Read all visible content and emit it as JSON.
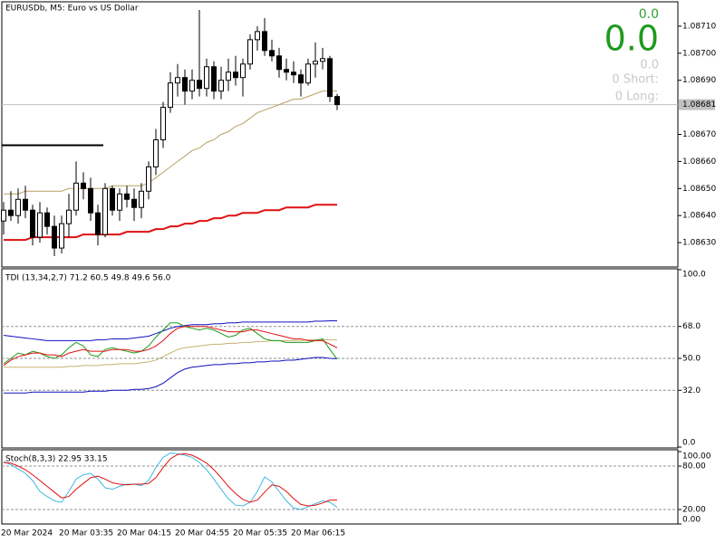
{
  "chart_data": [
    {
      "type": "candlestick",
      "title": "EURUSDb, M5:  Euro vs US Dollar",
      "categories": [
        "20 Mar 2024",
        null,
        null,
        null,
        null,
        null,
        null,
        null,
        "20 Mar 03:35",
        null,
        null,
        null,
        null,
        null,
        null,
        null,
        "20 Mar 04:15",
        null,
        null,
        null,
        null,
        null,
        null,
        null,
        "20 Mar 04:55",
        null,
        null,
        null,
        null,
        null,
        null,
        null,
        "20 Mar 05:35",
        null,
        null,
        null,
        null,
        null,
        null,
        null,
        "20 Mar 06:15",
        null,
        null,
        null,
        null,
        null,
        null
      ],
      "open": [
        1.08638,
        1.08642,
        1.0864,
        1.08646,
        1.08642,
        1.08632,
        1.08641,
        1.08636,
        1.08628,
        1.08637,
        1.08642,
        1.08652,
        1.0865,
        1.08641,
        1.08633,
        1.0865,
        1.08642,
        1.08648,
        1.08646,
        1.08643,
        1.08649,
        1.08658,
        1.08668,
        1.0868,
        1.08689,
        1.08691,
        1.08686,
        1.0869,
        1.08687,
        1.08695,
        1.08686,
        1.0869,
        1.08693,
        1.08691,
        1.08696,
        1.08705,
        1.08708,
        1.08701,
        1.08699,
        1.08694,
        1.08693,
        1.08692,
        1.08689,
        1.08696,
        1.08697,
        1.08698,
        1.08684
      ],
      "high": [
        1.08645,
        1.08649,
        1.0865,
        1.08651,
        1.08644,
        1.08645,
        1.08643,
        1.0864,
        1.0864,
        1.08648,
        1.0866,
        1.08656,
        1.08654,
        1.08644,
        1.08652,
        1.08651,
        1.0865,
        1.08651,
        1.0865,
        1.08652,
        1.0866,
        1.08672,
        1.08682,
        1.08693,
        1.08696,
        1.08694,
        1.08694,
        1.08716,
        1.08698,
        1.08697,
        1.08695,
        1.08698,
        1.08699,
        1.08698,
        1.08707,
        1.0871,
        1.08713,
        1.08705,
        1.08702,
        1.08698,
        1.08697,
        1.08694,
        1.08698,
        1.08704,
        1.08702,
        1.08699,
        1.08685
      ],
      "low": [
        1.08633,
        1.08638,
        1.08637,
        1.08639,
        1.08629,
        1.0863,
        1.08633,
        1.08625,
        1.08626,
        1.08632,
        1.0864,
        1.08646,
        1.08638,
        1.08629,
        1.08632,
        1.0864,
        1.08638,
        1.08643,
        1.08638,
        1.08639,
        1.08646,
        1.08655,
        1.08665,
        1.08678,
        1.08684,
        1.08681,
        1.08683,
        1.08684,
        1.08684,
        1.08683,
        1.08683,
        1.08686,
        1.08688,
        1.08684,
        1.08694,
        1.08701,
        1.08699,
        1.08697,
        1.08691,
        1.0869,
        1.08689,
        1.08684,
        1.08688,
        1.08691,
        1.08694,
        1.08682,
        1.08679
      ],
      "close": [
        1.08642,
        1.0864,
        1.08646,
        1.08642,
        1.08632,
        1.08641,
        1.08636,
        1.08628,
        1.08637,
        1.08642,
        1.08652,
        1.0865,
        1.08641,
        1.08633,
        1.0865,
        1.08642,
        1.08648,
        1.08646,
        1.08643,
        1.08649,
        1.08658,
        1.08668,
        1.0868,
        1.08689,
        1.08691,
        1.08686,
        1.0869,
        1.08687,
        1.08695,
        1.08686,
        1.0869,
        1.08693,
        1.08691,
        1.08696,
        1.08705,
        1.08708,
        1.08701,
        1.08699,
        1.08694,
        1.08693,
        1.08692,
        1.08689,
        1.08696,
        1.08697,
        1.08698,
        1.08684,
        1.08681
      ],
      "up_color": "#ffffff",
      "down_color": "#000000",
      "series": [
        {
          "color": "#b8a060",
          "values": [
            1.08648,
            1.08648,
            1.08648,
            1.08649,
            1.08649,
            1.08649,
            1.08649,
            1.08649,
            1.08649,
            1.0865,
            1.0865,
            1.0865,
            1.0865,
            1.0865,
            1.0865,
            1.08651,
            1.08651,
            1.08651,
            1.08651,
            1.08651,
            1.08652,
            1.08654,
            1.08656,
            1.08658,
            1.0866,
            1.08662,
            1.08664,
            1.08665,
            1.08667,
            1.08668,
            1.0867,
            1.08671,
            1.08673,
            1.08674,
            1.08676,
            1.08678,
            1.08679,
            1.0868,
            1.08681,
            1.08682,
            1.08683,
            1.08683,
            1.08684,
            1.08685,
            1.08686,
            1.08686,
            1.08686
          ]
        },
        {
          "color": "#e01010",
          "values": [
            1.08631,
            1.08631,
            1.08631,
            1.08631,
            1.08632,
            1.08632,
            1.08632,
            1.08632,
            1.08632,
            1.08632,
            1.08632,
            1.08633,
            1.08633,
            1.08633,
            1.08633,
            1.08633,
            1.08633,
            1.08634,
            1.08634,
            1.08634,
            1.08634,
            1.08635,
            1.08635,
            1.08636,
            1.08636,
            1.08637,
            1.08637,
            1.08638,
            1.08638,
            1.08639,
            1.08639,
            1.0864,
            1.0864,
            1.08641,
            1.08641,
            1.08641,
            1.08642,
            1.08642,
            1.08642,
            1.08643,
            1.08643,
            1.08643,
            1.08643,
            1.08644,
            1.08644,
            1.08644,
            1.08644
          ]
        }
      ],
      "level_line": 1.08666,
      "current_price": {
        "value": 1.08681,
        "label": "1.08681"
      },
      "ylim": [
        1.08621,
        1.08719
      ],
      "yticks": [
        {
          "value": 1.0871,
          "label": "1.08710"
        },
        {
          "value": 1.087,
          "label": "1.08700"
        },
        {
          "value": 1.0869,
          "label": "1.08690"
        },
        {
          "value": 1.0867,
          "label": "1.08670"
        },
        {
          "value": 1.0866,
          "label": "1.08660"
        },
        {
          "value": 1.0865,
          "label": "1.08650"
        },
        {
          "value": 1.0864,
          "label": "1.08640"
        },
        {
          "value": 1.0863,
          "label": "1.08630"
        }
      ],
      "annotations": [
        "0.0",
        "0.0",
        "0.0",
        "0 Short:",
        "0 Long:"
      ]
    },
    {
      "type": "line",
      "title": "TDI (13,34,2,7) 71.2 60.5 49.8 49.6 56.0",
      "ylim": [
        0,
        100
      ],
      "yticks": [
        {
          "value": 100,
          "label": "100.0"
        },
        {
          "value": 68,
          "label": "68.0"
        },
        {
          "value": 50,
          "label": "50.0"
        },
        {
          "value": 32,
          "label": "32.0"
        },
        {
          "value": 0,
          "label": "0.0"
        }
      ],
      "levels": [
        68,
        50,
        32
      ],
      "series": [
        {
          "color": "#1010c0",
          "values": [
            63,
            62.5,
            62,
            61.5,
            61,
            60.5,
            60,
            60,
            60,
            60,
            60,
            60,
            60,
            60.5,
            60.5,
            61,
            61,
            61,
            61.5,
            62,
            62.5,
            64,
            65.5,
            67,
            68,
            68.5,
            69,
            69,
            69,
            69.5,
            69.5,
            70,
            70,
            70.5,
            70.5,
            70.5,
            70.5,
            70.5,
            70.5,
            70.5,
            70.5,
            70.5,
            70.5,
            71,
            71,
            71.2,
            71.2
          ]
        },
        {
          "color": "#c8b070",
          "values": [
            45,
            45,
            45,
            45,
            45,
            45,
            45,
            45,
            45,
            45.5,
            45.5,
            46,
            46,
            46,
            46.5,
            46.5,
            47,
            47,
            47,
            47.5,
            48,
            49,
            51,
            53,
            55,
            56,
            56.5,
            57,
            57.5,
            58,
            58,
            58.5,
            58.5,
            59,
            59,
            59.5,
            59.5,
            60,
            60,
            60,
            60,
            60,
            60.5,
            60.5,
            60.5,
            60.5,
            60.5
          ]
        },
        {
          "color": "#1010c0",
          "values": [
            30.5,
            30.5,
            30.5,
            30.5,
            31,
            31,
            31,
            31,
            31,
            31,
            31,
            31,
            31.5,
            31.5,
            31.5,
            32,
            32,
            32,
            32.5,
            32.5,
            33,
            34,
            36,
            39,
            42,
            44,
            45,
            45.5,
            46,
            46.5,
            46.5,
            47,
            47,
            47.5,
            47.5,
            48,
            48,
            48.5,
            48.5,
            49,
            49,
            49.5,
            50,
            50.5,
            50.5,
            50,
            49.8
          ]
        },
        {
          "color": "#1a9a1a",
          "values": [
            47,
            50,
            53,
            52,
            54,
            53,
            51,
            50,
            52,
            56,
            59,
            57,
            52,
            51,
            55,
            56,
            55,
            54,
            53,
            54,
            57,
            62,
            66,
            70,
            70,
            68,
            67,
            66,
            67,
            66,
            64,
            62,
            63,
            66,
            67,
            64,
            61,
            60,
            60,
            59,
            59,
            59,
            59,
            60,
            61,
            55,
            49.6
          ]
        },
        {
          "color": "#e01010",
          "values": [
            46,
            49,
            51,
            52,
            53,
            53,
            52,
            52,
            51,
            53,
            54,
            55,
            54,
            54,
            54,
            55,
            55,
            55,
            54,
            54,
            55,
            57,
            60,
            64,
            67,
            68,
            68,
            68,
            68,
            67,
            66,
            65,
            65,
            65,
            66,
            66,
            65,
            64,
            63,
            62,
            61,
            61,
            60,
            60,
            60,
            58,
            56
          ]
        }
      ]
    },
    {
      "type": "line",
      "title": "Stoch(8,3,3) 22.95 33.15",
      "ylim": [
        0,
        100
      ],
      "yticks": [
        {
          "value": 100,
          "label": "100.00"
        },
        {
          "value": 80,
          "label": "80.00"
        },
        {
          "value": 20,
          "label": "20.00"
        },
        {
          "value": 0,
          "label": "0.00"
        }
      ],
      "levels": [
        80,
        20
      ],
      "series": [
        {
          "color": "#40b8e0",
          "values": [
            86,
            82,
            76,
            70,
            60,
            45,
            38,
            32,
            30,
            45,
            62,
            68,
            70,
            62,
            50,
            48,
            52,
            55,
            55,
            53,
            60,
            78,
            92,
            98,
            97,
            95,
            92,
            85,
            75,
            62,
            48,
            35,
            26,
            25,
            30,
            45,
            65,
            58,
            45,
            32,
            22,
            20,
            24,
            28,
            32,
            30,
            22.95
          ]
        },
        {
          "color": "#e01010",
          "values": [
            85,
            84,
            80,
            75,
            68,
            60,
            52,
            44,
            36,
            38,
            48,
            56,
            64,
            66,
            62,
            57,
            55,
            54,
            55,
            55,
            56,
            64,
            78,
            90,
            96,
            97,
            95,
            90,
            84,
            75,
            64,
            52,
            42,
            34,
            30,
            33,
            44,
            54,
            52,
            45,
            35,
            27,
            25,
            26,
            29,
            33,
            33.15
          ]
        }
      ]
    }
  ]
}
